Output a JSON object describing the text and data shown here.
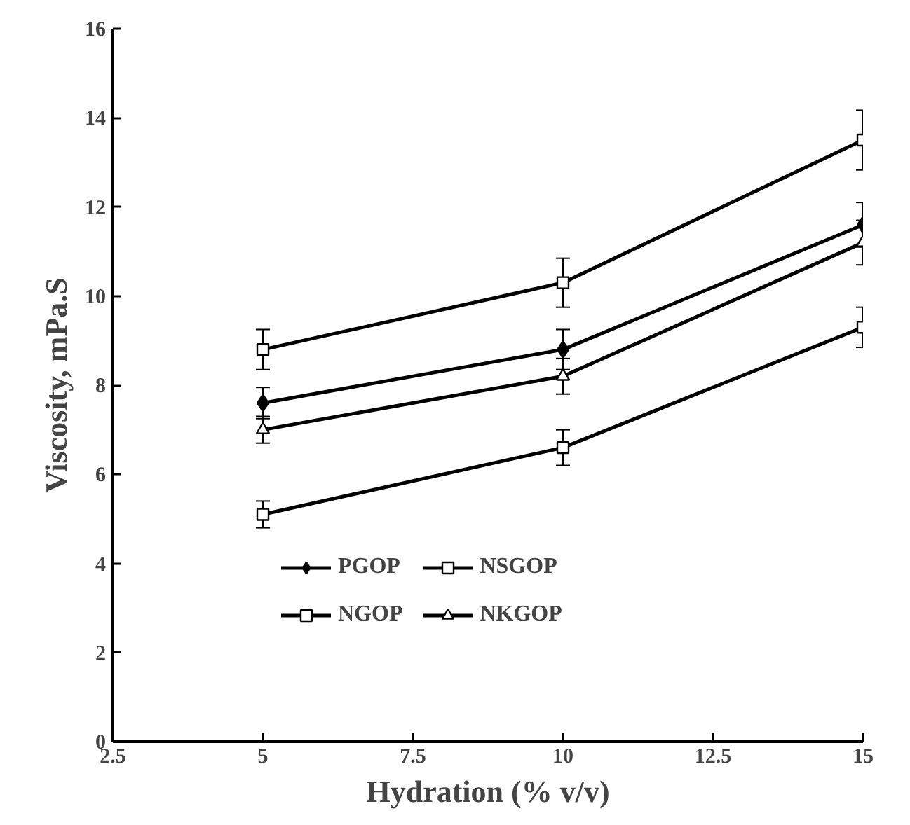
{
  "chart_data": {
    "type": "line",
    "xlabel": "Hydration (% v/v)",
    "ylabel": "Viscosity, mPa.S",
    "xlim": [
      2.5,
      15
    ],
    "xticks": [
      2.5,
      5,
      7.5,
      10,
      12.5,
      15
    ],
    "ylim": [
      0,
      16
    ],
    "yticks": [
      0,
      2,
      4,
      6,
      8,
      10,
      12,
      14,
      16
    ],
    "x": [
      5,
      10,
      15
    ],
    "grid": false,
    "legend": "bottom",
    "line_style": "solid",
    "series": [
      {
        "name": "PGOP",
        "color": "#000000",
        "marker": "diamond",
        "values": [
          7.6,
          8.8,
          11.6
        ],
        "errors": [
          0.35,
          0.45,
          0.5
        ]
      },
      {
        "name": "NSGOP",
        "color": "#000000",
        "marker": "square",
        "values": [
          8.8,
          10.3,
          13.5
        ],
        "errors": [
          0.45,
          0.55,
          0.67
        ]
      },
      {
        "name": "NGOP",
        "color": "#000000",
        "marker": "square",
        "values": [
          5.1,
          6.6,
          9.3
        ],
        "errors": [
          0.3,
          0.4,
          0.45
        ]
      },
      {
        "name": "NKGOP",
        "color": "#000000",
        "marker": "triangle",
        "values": [
          7.0,
          8.2,
          11.2
        ],
        "errors": [
          0.3,
          0.4,
          0.5
        ]
      }
    ]
  }
}
